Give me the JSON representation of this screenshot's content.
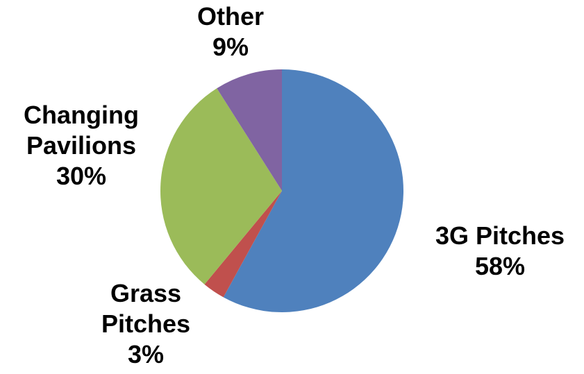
{
  "chart_data": {
    "type": "pie",
    "title": "",
    "start_angle_deg": 0,
    "direction": "clockwise",
    "slices": [
      {
        "label": "3G Pitches",
        "value": 58,
        "value_label": "58%",
        "color": "#4f81bd"
      },
      {
        "label": "Grass Pitches",
        "value": 3,
        "value_label": "3%",
        "color": "#c0504d"
      },
      {
        "label": "Changing Pavilions",
        "value": 30,
        "value_label": "30%",
        "color": "#9bbb59"
      },
      {
        "label": "Other",
        "value": 9,
        "value_label": "9%",
        "color": "#8064a2"
      }
    ],
    "legend": "none",
    "data_labels": "outside, category name and percentage"
  }
}
